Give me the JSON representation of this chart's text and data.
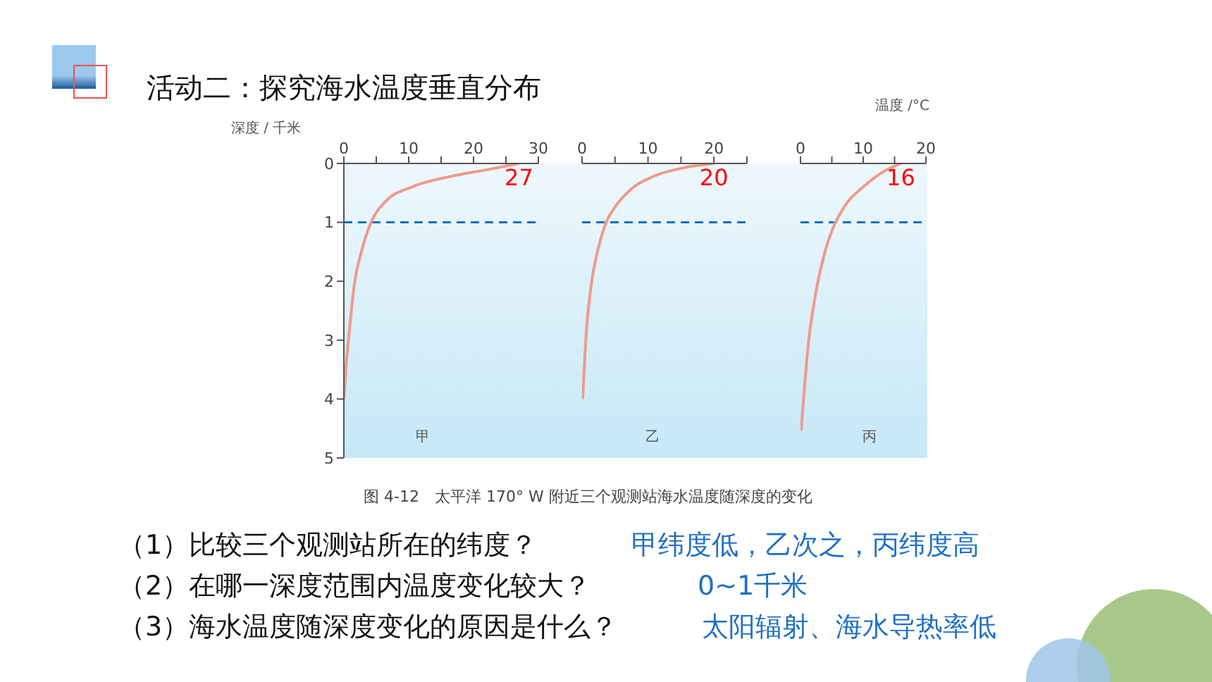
{
  "chart_data": [
    {
      "type": "line",
      "title": "活动二：探究海水温度垂直分布",
      "ylabel": "深度 / 千米",
      "xlim": [
        0,
        30
      ],
      "xticks": [
        0,
        {
          "value": 5,
          "label": null
        },
        10,
        {
          "value": 15,
          "label": null
        },
        20,
        {
          "value": 25,
          "label": null
        },
        30
      ],
      "ylim": [
        5,
        0
      ],
      "yticks": [
        0,
        1,
        2,
        3,
        4,
        5
      ],
      "marker": "none",
      "line_style": "solid",
      "series": [
        {
          "color": "#ef9a8a",
          "x": [
            27,
            22.4,
            16.5,
            10.7,
            6.3,
            4.2,
            2.7,
            1.6,
            0.9,
            0.3,
            0
          ],
          "values": [
            0,
            0.1,
            0.22,
            0.39,
            0.66,
            1.0,
            1.5,
            2.06,
            2.78,
            3.5,
            4.0
          ]
        }
      ],
      "ref_lines": [
        {
          "axis": "y",
          "value": 1,
          "color": "#1a6fc4",
          "line_style": "dashed"
        }
      ],
      "annotations": [
        "甲",
        {
          "text": "27",
          "x": 27,
          "y": 0
        }
      ]
    },
    {
      "type": "line",
      "xlim": [
        0,
        25
      ],
      "xticks": [
        0,
        {
          "value": 5,
          "label": null
        },
        10,
        {
          "value": 15,
          "label": null
        },
        20,
        {
          "value": 25,
          "label": null
        }
      ],
      "ylim": [
        5,
        0
      ],
      "tick_labels": "x",
      "marker": "none",
      "line_style": "solid",
      "series": [
        {
          "color": "#ef9a8a",
          "x": [
            20,
            15.1,
            10.8,
            7.2,
            5,
            3.6,
            2.5,
            1.4,
            0.7,
            0.1
          ],
          "values": [
            0,
            0.08,
            0.22,
            0.46,
            0.74,
            1.02,
            1.42,
            2.06,
            2.78,
            4.0
          ]
        }
      ],
      "ref_lines": [
        {
          "axis": "y",
          "value": 1,
          "color": "#1a6fc4",
          "line_style": "dashed"
        }
      ],
      "annotations": [
        "乙",
        {
          "text": "20",
          "x": 20,
          "y": 0
        }
      ]
    },
    {
      "type": "line",
      "xlabel": "温度 /°C",
      "xlim": [
        0,
        20
      ],
      "xticks": [
        0,
        {
          "value": 5,
          "label": null
        },
        10,
        {
          "value": 15,
          "label": null
        },
        20
      ],
      "ylim": [
        5,
        0
      ],
      "tick_labels": "x",
      "marker": "none",
      "line_style": "solid",
      "series": [
        {
          "color": "#ef9a8a",
          "x": [
            16,
            13.2,
            10.2,
            7.2,
            5.5,
            3.9,
            2.4,
            1.3,
            0.1
          ],
          "values": [
            0,
            0.14,
            0.38,
            0.7,
            1.02,
            1.5,
            2.22,
            3.02,
            4.54
          ]
        }
      ],
      "ref_lines": [
        {
          "axis": "y",
          "value": 1,
          "color": "#1a6fc4",
          "line_style": "dashed"
        }
      ],
      "annotations": [
        "丙",
        {
          "text": "16",
          "x": 16,
          "y": 0
        },
        "图 4-12　太平洋 170° W 附近三个观测站海水温度随深度的变化"
      ]
    },
    {
      "type": "other",
      "annotations": [
        "（1）比较三个观测站所在的纬度？",
        "甲纬度低，乙次之，丙纬度高",
        "（2）在哪一深度范围内温度变化较大？",
        "0~1千米",
        "（3）海水温度随深度变化的原因是什么？",
        "太阳辐射、海水导热率低"
      ]
    }
  ]
}
